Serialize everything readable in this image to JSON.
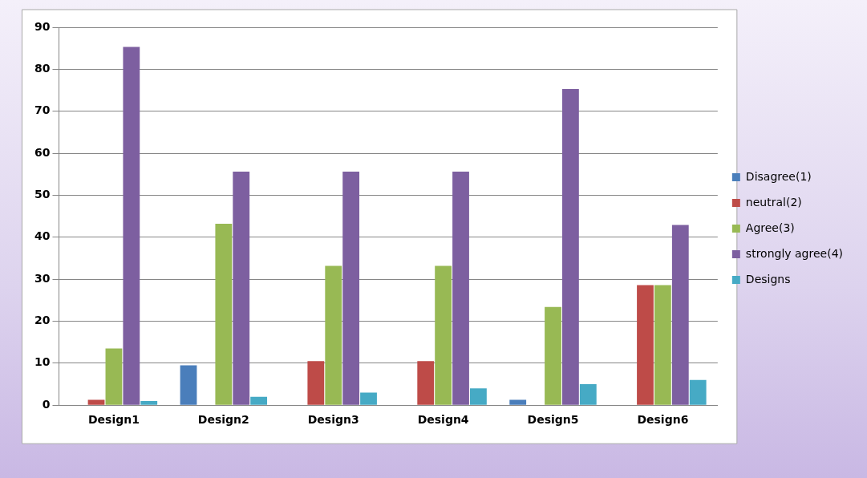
{
  "chart_data": {
    "type": "bar",
    "categories": [
      "Design1",
      "Design2",
      "Design3",
      "Design4",
      "Design5",
      "Design6"
    ],
    "series": [
      {
        "name": "Disagree(1)",
        "color": "#4a7ebb",
        "values": [
          0,
          9.5,
          0,
          0,
          1.3,
          0
        ]
      },
      {
        "name": "neutral(2)",
        "color": "#be4b48",
        "values": [
          1.3,
          0,
          10.5,
          10.5,
          0,
          28.6
        ]
      },
      {
        "name": "Agree(3)",
        "color": "#98b954",
        "values": [
          13.5,
          43.2,
          33.2,
          33.2,
          23.4,
          28.6
        ]
      },
      {
        "name": "strongly agree(4)",
        "color": "#7d5fa0",
        "values": [
          85.3,
          55.6,
          55.6,
          55.6,
          75.3,
          42.9
        ]
      },
      {
        "name": "Designs",
        "color": "#46aac5",
        "values": [
          1,
          2,
          3,
          4,
          5,
          6
        ]
      }
    ],
    "ylim": [
      0,
      90
    ],
    "yticks": [
      0,
      10,
      20,
      30,
      40,
      50,
      60,
      70,
      80,
      90
    ],
    "grid": "y",
    "legend": "right"
  }
}
